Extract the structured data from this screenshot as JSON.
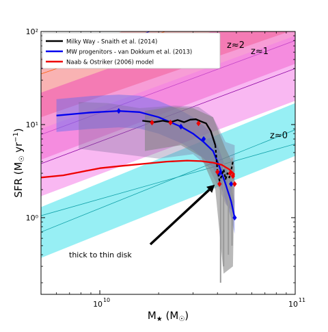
{
  "chart_data": {
    "type": "line",
    "title": "",
    "xlabel": "M★ (M☉)",
    "ylabel": "SFR (M☉ yr⁻¹)",
    "x_scale": "log",
    "y_scale": "log",
    "xlim": [
      5000000000,
      100000000000
    ],
    "ylim": [
      0.15,
      100
    ],
    "grid": false,
    "legend_position": "top-left",
    "x_ticks": [
      {
        "value": 10000000000,
        "base": "10",
        "exp": "10"
      },
      {
        "value": 100000000000,
        "base": "10",
        "exp": "11"
      }
    ],
    "y_ticks": [
      {
        "value": 1,
        "label": "10⁰"
      },
      {
        "value": 10,
        "label": "10¹"
      },
      {
        "value": 100,
        "label": "10²"
      }
    ],
    "legend": [
      {
        "label": "Milky Way - Snaith et al. (2014)",
        "color": "#000000"
      },
      {
        "label": "MW progenitors - van Dokkum et al. (2013)",
        "color": "#0000ee"
      },
      {
        "label": "Naab & Ostriker (2006) model",
        "color": "#ee0000"
      }
    ],
    "bands": [
      {
        "label": "z≈2",
        "color": "#f79a9a",
        "opacity": 0.75,
        "lower": [
          [
            5000000000.0,
            12.0
          ],
          [
            100000000000.0,
            105.0
          ]
        ],
        "upper": [
          [
            5000000000.0,
            52.0
          ],
          [
            100000000000.0,
            400.0
          ]
        ],
        "lines": [
          [
            [
              5000000000.0,
              40.0
            ],
            [
              100000000000.0,
              340.0
            ]
          ],
          [
            [
              5000000000.0,
              35.0
            ],
            [
              100000000000.0,
              300.0
            ]
          ]
        ]
      },
      {
        "label": "z≈1",
        "color": "#f04db4",
        "opacity": 0.55,
        "lower": [
          [
            5000000000.0,
            4.2
          ],
          [
            100000000000.0,
            45.0
          ]
        ],
        "upper": [
          [
            5000000000.0,
            22.0
          ],
          [
            100000000000.0,
            210.0
          ]
        ],
        "lines": [
          [
            [
              5000000000.0,
              7.8
            ],
            [
              100000000000.0,
              80.0
            ]
          ]
        ]
      },
      {
        "label": "",
        "color": "#f47de8",
        "opacity": 0.55,
        "lower": [
          [
            5000000000.0,
            1.7
          ],
          [
            100000000000.0,
            18.0
          ]
        ],
        "upper": [
          [
            5000000000.0,
            9.0
          ],
          [
            100000000000.0,
            90.0
          ]
        ],
        "lines": [
          [
            [
              5000000000.0,
              3.8
            ],
            [
              100000000000.0,
              40.0
            ]
          ]
        ]
      },
      {
        "label": "z≈0",
        "color": "#5fe6ee",
        "opacity": 0.65,
        "lower": [
          [
            5000000000.0,
            0.37
          ],
          [
            100000000000.0,
            4.6
          ]
        ],
        "upper": [
          [
            5000000000.0,
            1.3
          ],
          [
            100000000000.0,
            17.0
          ]
        ],
        "lines": [
          [
            [
              5000000000.0,
              0.7
            ],
            [
              100000000000.0,
              8.8
            ]
          ],
          [
            [
              5000000000.0,
              1.05
            ],
            [
              100000000000.0,
              6.2
            ]
          ]
        ]
      }
    ],
    "series": [
      {
        "name": "MW progenitors - van Dokkum et al. (2013)",
        "color": "#0000ee",
        "x": [
          6000000000,
          9000000000,
          12500000000,
          16000000000,
          20000000000,
          26000000000,
          30000000000,
          34000000000,
          38000000000,
          41000000000,
          44000000000,
          47000000000,
          49000000000
        ],
        "y": [
          12.5,
          13.5,
          14.0,
          13.6,
          12.0,
          9.5,
          8.0,
          6.5,
          5.2,
          3.5,
          2.3,
          1.5,
          1.0
        ],
        "markers_x": [
          12500000000,
          26000000000,
          34000000000,
          41000000000,
          47000000000,
          49000000000
        ],
        "markers_y": [
          14.0,
          9.5,
          7.0,
          3.0,
          2.3,
          1.0
        ]
      },
      {
        "name": "Milky Way - Snaith et al. (2014)",
        "color": "#000000",
        "x": [
          16500000000,
          19000000000,
          21000000000,
          23000000000,
          25000000000,
          27000000000,
          29000000000,
          31000000000,
          33000000000,
          35000000000,
          37000000000,
          39000000000
        ],
        "y": [
          11.0,
          10.6,
          11.0,
          10.6,
          11.2,
          10.6,
          11.3,
          11.4,
          10.8,
          10.3,
          8.5,
          6.0
        ],
        "markers_x": [
          18500000000,
          23000000000,
          32000000000,
          40000000000,
          41000000000,
          46500000000,
          48000000000,
          49000000000
        ],
        "markers_y": [
          10.5,
          10.5,
          10.3,
          3.1,
          2.3,
          3.0,
          2.8,
          2.3
        ]
      },
      {
        "name": "Milky Way - Snaith et al. (2014) (thin disk)",
        "color": "#000000",
        "dashed": true,
        "x": [
          39000000000,
          40000000000,
          41000000000,
          42000000000,
          43000000000,
          44000000000,
          45000000000,
          46000000000,
          47000000000,
          48000000000
        ],
        "y": [
          6.0,
          3.2,
          2.5,
          2.8,
          3.3,
          2.6,
          3.0,
          2.7,
          3.2,
          4.0
        ]
      },
      {
        "name": "Naab & Ostriker (2006) model",
        "color": "#ee0000",
        "x": [
          5000000000,
          6500000000,
          8000000000,
          10000000000,
          13000000000,
          17000000000,
          22000000000,
          28000000000,
          33000000000,
          38000000000,
          42000000000,
          46000000000,
          49000000000
        ],
        "y": [
          2.7,
          2.85,
          3.1,
          3.4,
          3.6,
          3.8,
          4.0,
          4.1,
          4.05,
          3.9,
          3.7,
          3.3,
          2.9
        ]
      }
    ],
    "annotations": [
      {
        "text": "thick to thin disk",
        "from": [
          6600000000,
          0.5
        ],
        "to": [
          40000000000,
          2.5
        ]
      }
    ]
  }
}
